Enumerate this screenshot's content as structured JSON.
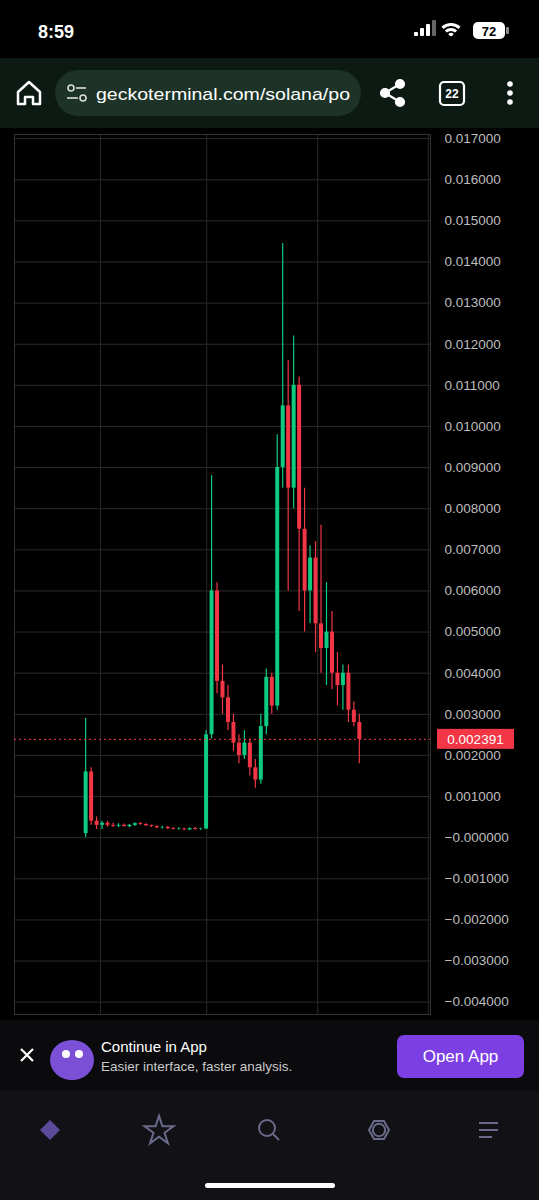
{
  "status_bar": {
    "time": "8:59",
    "battery": "72"
  },
  "browser": {
    "url": "geckoterminal.com/solana/po",
    "tabs": "22"
  },
  "chart_data": {
    "type": "candlestick",
    "x": [
      0,
      1,
      2,
      3,
      4,
      5,
      6,
      7,
      8,
      9,
      10,
      11,
      12,
      13,
      14,
      15,
      16,
      17,
      18,
      19,
      20,
      21,
      22,
      23,
      24,
      25,
      26,
      27,
      28,
      29,
      30,
      31,
      32,
      33,
      34,
      35,
      36,
      37,
      38,
      39,
      40,
      41,
      42,
      43,
      44,
      45,
      46,
      47,
      48,
      49,
      50
    ],
    "open": [
      0.0001,
      0.0016,
      0.0004,
      0.0003,
      0.00035,
      0.0003,
      0.00028,
      0.0003,
      0.00027,
      0.0003,
      0.00034,
      0.00032,
      0.00029,
      0.00027,
      0.00024,
      0.00025,
      0.00022,
      0.0002,
      0.00021,
      0.00019,
      0.00022,
      0.0002,
      0.00021,
      0.0025,
      0.006,
      0.0038,
      0.0034,
      0.0028,
      0.0023,
      0.002,
      0.0023,
      0.0017,
      0.0014,
      0.0027,
      0.0039,
      0.0032,
      0.009,
      0.0105,
      0.0085,
      0.011,
      0.0075,
      0.006,
      0.0068,
      0.0052,
      0.0046,
      0.005,
      0.004,
      0.0037,
      0.004,
      0.0031,
      0.0028
    ],
    "high": [
      0.0029,
      0.0017,
      0.0005,
      0.0004,
      0.0004,
      0.00035,
      0.00034,
      0.00033,
      0.00032,
      0.00036,
      0.00037,
      0.00034,
      0.00031,
      0.00029,
      0.00028,
      0.00027,
      0.00025,
      0.00024,
      0.00023,
      0.00024,
      0.00025,
      0.00023,
      0.0026,
      0.0088,
      0.0062,
      0.0042,
      0.0037,
      0.003,
      0.0025,
      0.0026,
      0.0024,
      0.0019,
      0.003,
      0.0041,
      0.004,
      0.0098,
      0.01445,
      0.0116,
      0.0122,
      0.0112,
      0.0085,
      0.0071,
      0.0072,
      0.0076,
      0.0062,
      0.0055,
      0.0045,
      0.0042,
      0.0042,
      0.0033,
      0.003
    ],
    "low": [
      0.0,
      0.0003,
      0.0002,
      0.0002,
      0.00025,
      0.00025,
      0.00024,
      0.00026,
      0.00024,
      0.00027,
      0.0003,
      0.00027,
      0.00025,
      0.00022,
      0.00021,
      0.0002,
      0.00019,
      0.00018,
      0.00017,
      0.00017,
      0.00018,
      0.00018,
      0.0002,
      0.0024,
      0.0035,
      0.003,
      0.0026,
      0.0021,
      0.0018,
      0.0019,
      0.0015,
      0.0012,
      0.0013,
      0.0025,
      0.003,
      0.0031,
      0.0085,
      0.006,
      0.008,
      0.0055,
      0.005,
      0.0052,
      0.0045,
      0.004,
      0.0037,
      0.0036,
      0.0032,
      0.0031,
      0.0028,
      0.0027,
      0.0018
    ],
    "close": [
      0.0016,
      0.0004,
      0.0003,
      0.00035,
      0.0003,
      0.00028,
      0.0003,
      0.00027,
      0.0003,
      0.00034,
      0.00032,
      0.00029,
      0.00027,
      0.00024,
      0.00025,
      0.00022,
      0.0002,
      0.00021,
      0.00019,
      0.00022,
      0.0002,
      0.00021,
      0.0025,
      0.006,
      0.0038,
      0.0034,
      0.0028,
      0.0023,
      0.002,
      0.0023,
      0.0017,
      0.0014,
      0.0027,
      0.0039,
      0.0032,
      0.009,
      0.0105,
      0.0085,
      0.011,
      0.0075,
      0.006,
      0.0068,
      0.0052,
      0.0046,
      0.005,
      0.004,
      0.0037,
      0.004,
      0.0031,
      0.0028,
      0.002391
    ],
    "colors": [
      "#0ecb81",
      "#f23645",
      "#f23645",
      "#0ecb81",
      "#f23645",
      "#f23645",
      "#0ecb81",
      "#f23645",
      "#0ecb81",
      "#0ecb81",
      "#f23645",
      "#f23645",
      "#f23645",
      "#f23645",
      "#0ecb81",
      "#f23645",
      "#f23645",
      "#0ecb81",
      "#f23645",
      "#0ecb81",
      "#f23645",
      "#0ecb81",
      "#0ecb81",
      "#0ecb81",
      "#f23645",
      "#f23645",
      "#f23645",
      "#f23645",
      "#f23645",
      "#0ecb81",
      "#f23645",
      "#f23645",
      "#0ecb81",
      "#0ecb81",
      "#f23645",
      "#0ecb81",
      "#0ecb81",
      "#f23645",
      "#0ecb81",
      "#f23645",
      "#f23645",
      "#0ecb81",
      "#f23645",
      "#f23645",
      "#0ecb81",
      "#f23645",
      "#f23645",
      "#0ecb81",
      "#f23645",
      "#f23645",
      "#f23645"
    ],
    "xlim": [
      -13,
      63
    ],
    "xticks": [
      2.7,
      22.1,
      42.4,
      62.6
    ],
    "ylim": [
      -0.0043,
      0.0171
    ],
    "yticks": [
      {
        "value": 0.017,
        "label": "0.017000"
      },
      {
        "value": 0.016,
        "label": "0.016000"
      },
      {
        "value": 0.015,
        "label": "0.015000"
      },
      {
        "value": 0.014,
        "label": "0.014000"
      },
      {
        "value": 0.013,
        "label": "0.013000"
      },
      {
        "value": 0.012,
        "label": "0.012000"
      },
      {
        "value": 0.011,
        "label": "0.011000"
      },
      {
        "value": 0.01,
        "label": "0.010000"
      },
      {
        "value": 0.009,
        "label": "0.009000"
      },
      {
        "value": 0.008,
        "label": "0.008000"
      },
      {
        "value": 0.007,
        "label": "0.007000"
      },
      {
        "value": 0.006,
        "label": "0.006000"
      },
      {
        "value": 0.005,
        "label": "0.005000"
      },
      {
        "value": 0.004,
        "label": "0.004000"
      },
      {
        "value": 0.003,
        "label": "0.003000"
      },
      {
        "value": 0.002,
        "label": "0.002000"
      },
      {
        "value": 0.001,
        "label": "0.001000"
      },
      {
        "value": 0,
        "label": "−0.000000"
      },
      {
        "value": -0.001,
        "label": "−0.001000"
      },
      {
        "value": -0.002,
        "label": "−0.002000"
      },
      {
        "value": -0.003,
        "label": "−0.003000"
      },
      {
        "value": -0.004,
        "label": "−0.004000"
      }
    ],
    "grid": true,
    "tick_labels": "y",
    "current_price": {
      "value": 0.002391,
      "label": "0.002391",
      "color": "#f23645"
    }
  },
  "banner": {
    "title": "Continue in App",
    "subtitle": "Easier interface, faster analysis.",
    "button": "Open App"
  }
}
